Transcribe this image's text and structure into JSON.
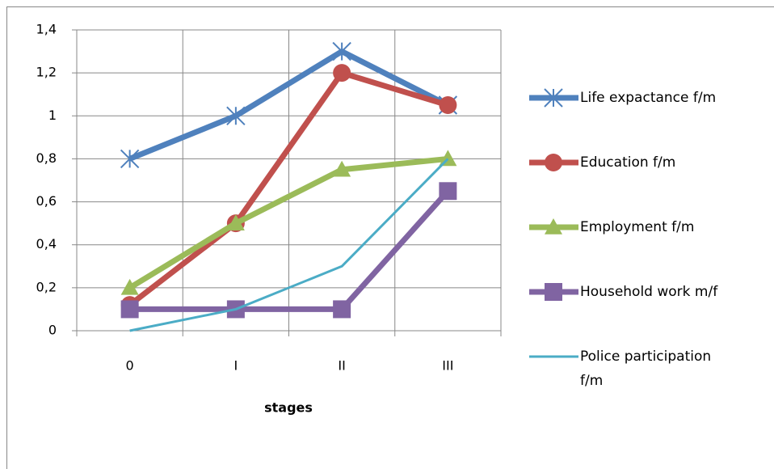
{
  "chart_data": {
    "type": "line",
    "x_label": "stages",
    "categories": [
      "0",
      "I",
      "II",
      "III"
    ],
    "ylim": [
      0,
      1.4
    ],
    "yticks": [
      0,
      {
        "value": 0.2,
        "label": "0,2"
      },
      {
        "value": 0.4,
        "label": "0,4"
      },
      {
        "value": 0.6,
        "label": "0,6"
      },
      {
        "value": 0.8,
        "label": "0,8"
      },
      1,
      {
        "value": 1.2,
        "label": "1,2"
      },
      {
        "value": 1.4,
        "label": "1,4"
      }
    ],
    "grid": true,
    "legend": "right",
    "series": [
      {
        "name": "Life expactance f/m",
        "color": "#4f81bd",
        "marker": "star",
        "values": [
          0.8,
          1.0,
          1.3,
          1.05
        ]
      },
      {
        "name": "Education f/m",
        "color": "#c0504d",
        "marker": "circle",
        "values": [
          0.12,
          0.5,
          1.2,
          1.05
        ]
      },
      {
        "name": "Employment f/m",
        "color": "#9bbb59",
        "marker": "triangle",
        "values": [
          0.2,
          0.5,
          0.75,
          0.8
        ]
      },
      {
        "name": "Household work m/f",
        "color": "#8064a2",
        "marker": "square",
        "values": [
          0.1,
          0.1,
          0.1,
          0.65
        ]
      },
      {
        "name": "Police participation f/m",
        "color": "#4bacc6",
        "marker": "none",
        "values": [
          0,
          0.1,
          0.3,
          0.8
        ]
      }
    ]
  }
}
